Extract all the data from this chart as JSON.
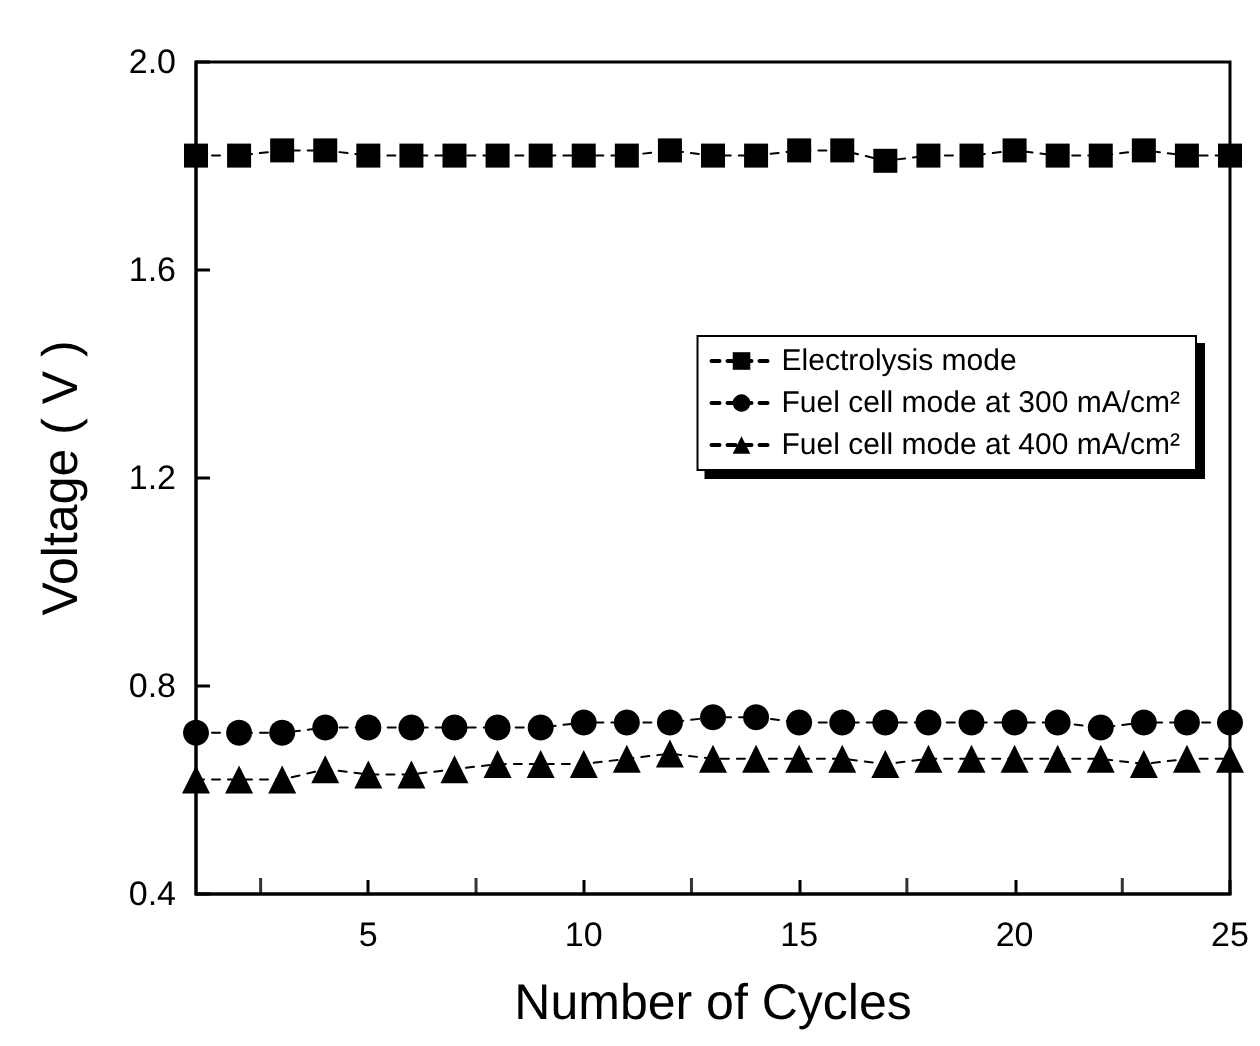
{
  "chart_data": {
    "type": "line",
    "xlabel": "Number of Cycles",
    "ylabel": "Voltage ( V )",
    "x": [
      1,
      2,
      3,
      4,
      5,
      6,
      7,
      8,
      9,
      10,
      11,
      12,
      13,
      14,
      15,
      16,
      17,
      18,
      19,
      20,
      21,
      22,
      23,
      24,
      25
    ],
    "series": [
      {
        "name": "Electrolysis mode",
        "color": "#000000",
        "marker": "square",
        "values": [
          1.82,
          1.82,
          1.83,
          1.83,
          1.82,
          1.82,
          1.82,
          1.82,
          1.82,
          1.82,
          1.82,
          1.83,
          1.82,
          1.82,
          1.83,
          1.83,
          1.81,
          1.82,
          1.82,
          1.83,
          1.82,
          1.82,
          1.83,
          1.82,
          1.82
        ]
      },
      {
        "name": "Fuel cell mode at 300 mA/cm²",
        "color": "#000000",
        "marker": "circle",
        "values": [
          0.71,
          0.71,
          0.71,
          0.72,
          0.72,
          0.72,
          0.72,
          0.72,
          0.72,
          0.73,
          0.73,
          0.73,
          0.74,
          0.74,
          0.73,
          0.73,
          0.73,
          0.73,
          0.73,
          0.73,
          0.73,
          0.72,
          0.73,
          0.73,
          0.73
        ]
      },
      {
        "name": "Fuel cell mode at 400 mA/cm²",
        "color": "#000000",
        "marker": "triangle",
        "values": [
          0.62,
          0.62,
          0.62,
          0.64,
          0.63,
          0.63,
          0.64,
          0.65,
          0.65,
          0.65,
          0.66,
          0.67,
          0.66,
          0.66,
          0.66,
          0.66,
          0.65,
          0.66,
          0.66,
          0.66,
          0.66,
          0.66,
          0.65,
          0.66,
          0.66
        ]
      }
    ],
    "line_style": "dashed",
    "xlim": [
      1,
      25
    ],
    "xticks": [
      5,
      10,
      15,
      20,
      25
    ],
    "ylim": [
      0.4,
      2.0
    ],
    "yticks": [
      0.4,
      0.8,
      1.2,
      1.6,
      {
        "value": 2,
        "label": "2.0"
      }
    ],
    "grid": false,
    "legend": "right"
  }
}
